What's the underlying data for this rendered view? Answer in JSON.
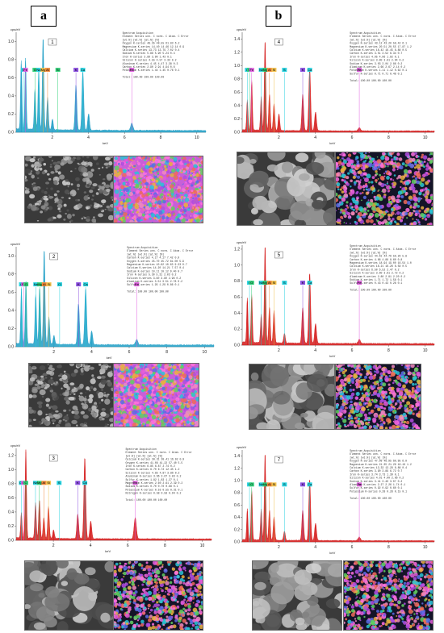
{
  "labels": {
    "a": "a",
    "b": "b"
  },
  "colors": {
    "teal": "#1d9ec6",
    "red": "#d41a1a",
    "blue": "#1a2fd4",
    "el_green": "#33d17a",
    "el_cyan": "#29d3e0",
    "el_magenta": "#e060e0",
    "el_yellow": "#f2c14e",
    "el_orange": "#f08a3c",
    "el_purple": "#8c50e0"
  },
  "panels": [
    {
      "number": "1",
      "yunit": "cps/eV",
      "xlabel": "keV",
      "ytick_labels": [
        "0.0",
        "0.2",
        "0.4",
        "0.6",
        "0.8",
        "1.0"
      ],
      "ymax": 1.1,
      "xtick_labels": [
        "2",
        "4",
        "6",
        "8",
        "10"
      ],
      "color": "teal",
      "peaks": [
        [
          0.28,
          0.75
        ],
        [
          0.52,
          0.78
        ],
        [
          1.04,
          0.45
        ],
        [
          1.25,
          0.65
        ],
        [
          1.49,
          1.02
        ],
        [
          1.74,
          0.35
        ],
        [
          2.01,
          0.12
        ],
        [
          3.31,
          0.5
        ],
        [
          3.69,
          0.65
        ],
        [
          4.01,
          0.18
        ],
        [
          6.4,
          0.08
        ]
      ],
      "elements": [
        [
          "C",
          "el_cyan"
        ],
        [
          "Fe",
          "el_magenta"
        ],
        [
          "O",
          "el_green"
        ],
        [
          "Na",
          "el_cyan"
        ],
        [
          "Mg",
          "el_yellow"
        ],
        [
          "Al",
          "el_orange"
        ],
        [
          "Si",
          "el_green"
        ],
        [
          "K",
          "el_purple"
        ],
        [
          "Ca",
          "el_cyan"
        ],
        [
          "Fe",
          "el_magenta"
        ]
      ],
      "table_title": "Spectrum Acquisition",
      "table_header": "Element  Series  unn. C  norm. C  Atom. C  Error",
      "table_header2": "          [wt.%]  [wt.%]  [at.%]  [%]",
      "table_rows": [
        "Oxygen   K-series  48.35  48.55  61.83  6.2",
        "Magnesium K-series 14.40  14.46  12.14  0.9",
        "Calcium  K-series  13.73  13.79   7.02  0.4",
        "Sodium   K-series   5.88   5.90   5.24  0.4",
        "Iron     K-series   3.89   3.90   1.43  0.1",
        "Silicon  K-series   4.55   4.57   3.33  0.2",
        "Aluminum K-series   4.45   4.47   3.38  0.3",
        "Carbon   K-series   2.90   2.91   4.94  0.6",
        "Potassium K-series  1.44   1.45   0.76  0.1"
      ],
      "table_total": "Total: 100.00  100.00  100.00"
    },
    {
      "number": "4",
      "yunit": "cps/eV",
      "xlabel": "keV",
      "ytick_labels": [
        "0.0",
        "0.2",
        "0.4",
        "0.6",
        "0.8",
        "1.0",
        "1.2",
        "1.4"
      ],
      "ymax": 1.5,
      "xtick_labels": [
        "2",
        "4",
        "6",
        "8",
        "10"
      ],
      "color": "red",
      "peaks": [
        [
          0.28,
          0.45
        ],
        [
          0.52,
          0.75
        ],
        [
          1.04,
          0.5
        ],
        [
          1.25,
          1.35
        ],
        [
          1.49,
          0.55
        ],
        [
          1.74,
          0.4
        ],
        [
          2.01,
          0.25
        ],
        [
          3.31,
          0.55
        ],
        [
          3.69,
          0.95
        ],
        [
          4.01,
          0.28
        ],
        [
          6.4,
          0.05
        ]
      ],
      "elements": [
        [
          "C",
          "el_cyan"
        ],
        [
          "O",
          "el_green"
        ],
        [
          "Fe",
          "el_magenta"
        ],
        [
          "Na",
          "el_cyan"
        ],
        [
          "Mg",
          "el_green"
        ],
        [
          "Al",
          "el_orange"
        ],
        [
          "Si",
          "el_yellow"
        ],
        [
          "S",
          "el_cyan"
        ],
        [
          "K",
          "el_purple"
        ],
        [
          "Ca",
          "el_cyan"
        ],
        [
          "Fe",
          "el_magenta"
        ]
      ],
      "table_title": "Spectrum Acquisition",
      "table_header": "Element  Series  unn. C  norm. C  Atom. C  Error",
      "table_header2": "          [wt.%]  [wt.%]  [at.%]  [%]",
      "table_rows": [
        "Oxygen   K-series  43.12  43.20  58.42  6.1",
        "Magnesium K-series 20.51  20.55  17.87  1.2",
        "Calcium  K-series  16.42  16.45   8.88  0.5",
        "Carbon   K-series   3.51   3.52   6.34  0.7",
        "Iron     K-series   4.95   4.96   1.92  0.1",
        "Silicon  K-series   3.80   3.81   2.94  0.2",
        "Sodium   K-series   3.03   3.04   2.86  0.2",
        "Aluminum K-series   2.66   2.67   2.14  0.2",
        "Potassium K-series  1.11   1.12   0.62  0.1",
        "Sulfur   K-series   0.71   0.71   0.48  0.1"
      ],
      "table_total": "Total: 100.00  100.00  100.00"
    },
    {
      "number": "2",
      "yunit": "cps/eV",
      "xlabel": "keV",
      "ytick_labels": [
        "0.0",
        "0.2",
        "0.4",
        "0.6",
        "0.8",
        "1.0"
      ],
      "ymax": 1.1,
      "xtick_labels": [
        "2",
        "4",
        "6",
        "8",
        "10"
      ],
      "color": "teal",
      "peaks": [
        [
          0.28,
          0.6
        ],
        [
          0.52,
          0.68
        ],
        [
          1.04,
          0.55
        ],
        [
          1.25,
          0.62
        ],
        [
          1.49,
          1.05
        ],
        [
          1.74,
          0.3
        ],
        [
          2.01,
          0.1
        ],
        [
          3.31,
          0.45
        ],
        [
          3.69,
          0.62
        ],
        [
          4.01,
          0.15
        ],
        [
          6.4,
          0.06
        ]
      ],
      "elements": [
        [
          "C",
          "el_cyan"
        ],
        [
          "Fe",
          "el_magenta"
        ],
        [
          "O",
          "el_green"
        ],
        [
          "Na",
          "el_cyan"
        ],
        [
          "Mg",
          "el_green"
        ],
        [
          "Al",
          "el_orange"
        ],
        [
          "Si",
          "el_yellow"
        ],
        [
          "Cl",
          "el_cyan"
        ],
        [
          "K",
          "el_purple"
        ],
        [
          "Ca",
          "el_cyan"
        ],
        [
          "Fe",
          "el_magenta"
        ]
      ],
      "table_title": "Spectrum Acquisition",
      "table_header": "Element  Series  unn. C  norm. C  Atom. C  Error",
      "table_header2": "          [wt.%]  [wt.%]  [at.%]  [%]",
      "table_rows": [
        "Carbon   K-series   4.17   4.17   7.42  0.9",
        "Oxygen   K-series  45.70  45.72  61.00  5.9",
        "Magnesium K-series 10.62  10.63   9.33  0.7",
        "Calcium  K-series  14.20  14.21   7.57  0.4",
        "Sodium   K-series  10.11  10.12   9.40  0.7",
        "Iron     K-series   5.30   5.31   2.03  0.2",
        "Silicon  K-series   3.90   3.90   2.96  0.2",
        "Aluminum K-series   3.51   3.51   2.78  0.2",
        "Sulfur   K-series   1.29   1.29   0.86  0.1"
      ],
      "table_total": "Total: 100.00  100.00  100.00"
    },
    {
      "number": "5",
      "yunit": "cps/eV",
      "xlabel": "keV",
      "ytick_labels": [
        "0.0",
        "0.2",
        "0.4",
        "0.6",
        "0.8",
        "1.0",
        "1.2"
      ],
      "ymax": 1.25,
      "xtick_labels": [
        "2",
        "4",
        "6",
        "8",
        "10"
      ],
      "color": "red",
      "peaks": [
        [
          0.28,
          0.55
        ],
        [
          0.52,
          0.6
        ],
        [
          1.04,
          0.35
        ],
        [
          1.25,
          1.22
        ],
        [
          1.49,
          0.45
        ],
        [
          1.74,
          0.4
        ],
        [
          2.31,
          0.12
        ],
        [
          3.31,
          0.45
        ],
        [
          3.69,
          0.88
        ],
        [
          4.01,
          0.25
        ],
        [
          6.4,
          0.05
        ]
      ],
      "elements": [
        [
          "C",
          "el_cyan"
        ],
        [
          "O",
          "el_green"
        ],
        [
          "Na",
          "el_cyan"
        ],
        [
          "Mg",
          "el_green"
        ],
        [
          "Al",
          "el_orange"
        ],
        [
          "Si",
          "el_yellow"
        ],
        [
          "S",
          "el_cyan"
        ],
        [
          "K",
          "el_purple"
        ],
        [
          "Ca",
          "el_cyan"
        ],
        [
          "Fe",
          "el_magenta"
        ]
      ],
      "table_title": "Spectrum Acquisition",
      "table_header": "Element  Series  unn. C  norm. C  Atom. C  Error",
      "table_header2": "          [wt.%]  [wt.%]  [at.%]  [%]",
      "table_rows": [
        "Oxygen   K-series  44.61  44.76  59.20  5.8",
        "Carbon   K-series   4.86   4.88   8.60  0.8",
        "Magnesium K-series 18.94  19.00  16.54  1.0",
        "Calcium  K-series  16.21  16.26   8.58  0.5",
        "Iron     K-series   6.50   6.52   2.47  0.2",
        "Silicon  K-series   3.60   3.61   2.72  0.2",
        "Aluminum K-series   2.80   2.81   2.20  0.2",
        "Sodium   K-series   1.71   1.72   1.58  0.1",
        "Sulfur   K-series   0.43   0.43   0.28  0.1"
      ],
      "table_total": "Total: 100.00  100.00  100.00"
    },
    {
      "number": "3",
      "yunit": "cps/eV",
      "xlabel": "keV",
      "ytick_labels": [
        "0.0",
        "0.2",
        "0.4",
        "0.6",
        "0.8",
        "1.0",
        "1.2"
      ],
      "ymax": 1.3,
      "xtick_labels": [
        "2",
        "4",
        "6",
        "8",
        "10"
      ],
      "color": "red",
      "peaks": [
        [
          0.28,
          0.35
        ],
        [
          0.52,
          1.25
        ],
        [
          1.04,
          0.5
        ],
        [
          1.25,
          0.55
        ],
        [
          1.49,
          0.3
        ],
        [
          1.74,
          0.45
        ],
        [
          2.01,
          0.12
        ],
        [
          3.31,
          0.35
        ],
        [
          3.69,
          1.15
        ],
        [
          4.01,
          0.25
        ],
        [
          6.4,
          0.3
        ]
      ],
      "elements": [
        [
          "Ca",
          "el_cyan"
        ],
        [
          "O",
          "el_magenta"
        ],
        [
          "C",
          "el_green"
        ],
        [
          "Na",
          "el_cyan"
        ],
        [
          "Mg",
          "el_green"
        ],
        [
          "Al",
          "el_orange"
        ],
        [
          "Si",
          "el_yellow"
        ],
        [
          "S",
          "el_cyan"
        ],
        [
          "K",
          "el_purple"
        ],
        [
          "Ca",
          "el_cyan"
        ],
        [
          "Fe",
          "el_magenta"
        ]
      ],
      "table_title": "Spectrum Acquisition",
      "table_header": "Element  Series  unn. C  norm. C  Atom. C  Error",
      "table_header2": "          [wt.%]  [wt.%]  [at.%]  [%]",
      "table_rows": [
        "Calcium  K-series  30.31  30.41  16.92  0.9",
        "Oxygen   K-series  41.08  41.22  57.40  5.5",
        "Iron     K-series   6.85   6.87   2.74  0.2",
        "Carbon   K-series   6.70   6.72  12.45  1.2",
        "Silicon  K-series   4.85   4.87   3.86  0.2",
        "Aluminum K-series   3.66   3.67   3.03  0.2",
        "Sulfur   K-series   1.82   1.83   1.27  0.1",
        "Magnesium K-series  2.60   2.61   2.39  0.2",
        "Sodium   K-series   0.70   0.70   0.68  0.1",
        "Potassium K-series  0.55   0.55   0.31  0.1",
        "Nitrogen K-series   0.58   0.58   0.94  0.2"
      ],
      "table_total": "Total: 100.00  100.00  100.00"
    },
    {
      "number": "7",
      "yunit": "cps/eV",
      "xlabel": "keV",
      "ytick_labels": [
        "0.0",
        "0.2",
        "0.4",
        "0.6",
        "0.8",
        "1.0",
        "1.2",
        "1.4"
      ],
      "ymax": 1.5,
      "xtick_labels": [
        "2",
        "4",
        "6",
        "8",
        "10"
      ],
      "color": "red",
      "peaks": [
        [
          0.28,
          0.5
        ],
        [
          0.52,
          0.82
        ],
        [
          1.04,
          0.5
        ],
        [
          1.25,
          1.42
        ],
        [
          1.49,
          0.5
        ],
        [
          1.74,
          0.38
        ],
        [
          2.31,
          0.15
        ],
        [
          3.31,
          0.5
        ],
        [
          3.69,
          1.0
        ],
        [
          4.01,
          0.28
        ],
        [
          6.4,
          0.06
        ]
      ],
      "elements": [
        [
          "C",
          "el_cyan"
        ],
        [
          "O",
          "el_green"
        ],
        [
          "Na",
          "el_cyan"
        ],
        [
          "Mg",
          "el_green"
        ],
        [
          "Al",
          "el_orange"
        ],
        [
          "Si",
          "el_yellow"
        ],
        [
          "S",
          "el_cyan"
        ],
        [
          "K",
          "el_purple"
        ],
        [
          "Ca",
          "el_cyan"
        ],
        [
          "Fe",
          "el_magenta"
        ]
      ],
      "table_title": "Spectrum Acquisition",
      "table_header": "Element  Series  unn. C  norm. C  Atom. C  Error",
      "table_header2": "          [wt.%]  [wt.%]  [at.%]  [%]",
      "table_rows": [
        "Oxygen   K-series  47.09  46.95  60.95  6.0",
        "Magnesium K-series 21.35  21.29  18.19  1.2",
        "Calcium  K-series  13.33  13.29   6.88  0.4",
        "Carbon   K-series   3.90   3.89   6.72  0.7",
        "Iron     K-series   3.74   3.73   1.39  0.1",
        "Silicon  K-series   4.01   4.00   2.96  0.2",
        "Sodium   K-series   3.41   3.40   3.07  0.2",
        "Aluminum K-series   2.27   2.26   1.74  0.1",
        "Sulfur   K-series   0.92   0.92   0.60  0.1",
        "Potassium K-series  0.28   0.28   0.15  0.1"
      ],
      "table_total": "Total: 100.00  100.00  100.00"
    }
  ]
}
